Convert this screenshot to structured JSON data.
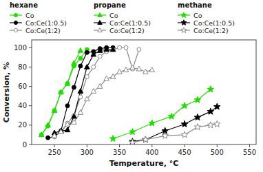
{
  "chart_data": {
    "type": "line",
    "xlabel": "Temperature, °C",
    "ylabel": "Conversion, %",
    "xlim": [
      215,
      560
    ],
    "ylim": [
      0,
      108
    ],
    "xticks": [
      250,
      300,
      350,
      400,
      450,
      500,
      550
    ],
    "yticks": [
      0,
      20,
      40,
      60,
      80,
      100
    ],
    "series": [
      {
        "group": "hexane",
        "name": "Co",
        "color": "#22dd00",
        "marker": "circle",
        "x": [
          230,
          240,
          250,
          260,
          270,
          280,
          290,
          300
        ],
        "values": [
          10,
          19,
          35,
          54,
          63,
          81,
          89,
          98
        ]
      },
      {
        "group": "hexane",
        "name": "Co:Ce(1:0.5)",
        "color": "#000000",
        "marker": "circle",
        "x": [
          240,
          250,
          260,
          270,
          280,
          290,
          300,
          310,
          320,
          330,
          340
        ],
        "values": [
          7,
          8,
          14,
          40,
          59,
          81,
          95,
          96,
          99,
          100,
          100
        ]
      },
      {
        "group": "hexane",
        "name": "Co:Ce(1:2)",
        "color": "#888888",
        "marker": "open-circle",
        "x": [
          250,
          260,
          270,
          280,
          290,
          300,
          310,
          320,
          330,
          340,
          350,
          360,
          370,
          380
        ],
        "values": [
          8,
          13,
          22,
          30,
          49,
          70,
          80,
          91,
          96,
          98,
          100,
          100,
          78,
          98
        ]
      },
      {
        "group": "propane",
        "name": "Co",
        "color": "#22dd00",
        "marker": "triangle",
        "x": [
          230,
          240,
          250,
          260,
          270,
          280,
          290
        ],
        "values": [
          10,
          20,
          35,
          54,
          63,
          84,
          97
        ]
      },
      {
        "group": "propane",
        "name": "Co:Ce(1:0.5)",
        "color": "#000000",
        "marker": "triangle",
        "x": [
          250,
          260,
          270,
          280,
          290,
          300,
          310,
          320,
          330,
          340
        ],
        "values": [
          12,
          14,
          15,
          29,
          55,
          80,
          93,
          97,
          98,
          98
        ]
      },
      {
        "group": "propane",
        "name": "Co:Ce(1:2)",
        "color": "#888888",
        "marker": "open-triangle",
        "x": [
          250,
          260,
          270,
          280,
          290,
          300,
          310,
          320,
          330,
          340,
          350,
          360,
          370,
          380,
          390,
          400
        ],
        "values": [
          9,
          13,
          21,
          23,
          33,
          47,
          55,
          60,
          68,
          70,
          75,
          77,
          79,
          78,
          75,
          77
        ]
      },
      {
        "group": "methane",
        "name": "Co",
        "color": "#22dd00",
        "marker": "star",
        "x": [
          340,
          370,
          400,
          430,
          450,
          470,
          490
        ],
        "values": [
          6,
          13,
          22,
          29,
          40,
          46,
          57
        ]
      },
      {
        "group": "methane",
        "name": "Co:Ce(1:0.5)",
        "color": "#000000",
        "marker": "star",
        "x": [
          370,
          390,
          420,
          450,
          470,
          490,
          500
        ],
        "values": [
          3,
          5,
          14,
          21,
          28,
          34,
          39
        ]
      },
      {
        "group": "methane",
        "name": "Co:Ce(1:2)",
        "color": "#888888",
        "marker": "open-star",
        "x": [
          370,
          390,
          420,
          450,
          470,
          490,
          500
        ],
        "values": [
          2,
          5,
          9,
          10,
          18,
          20,
          21
        ]
      }
    ]
  }
}
